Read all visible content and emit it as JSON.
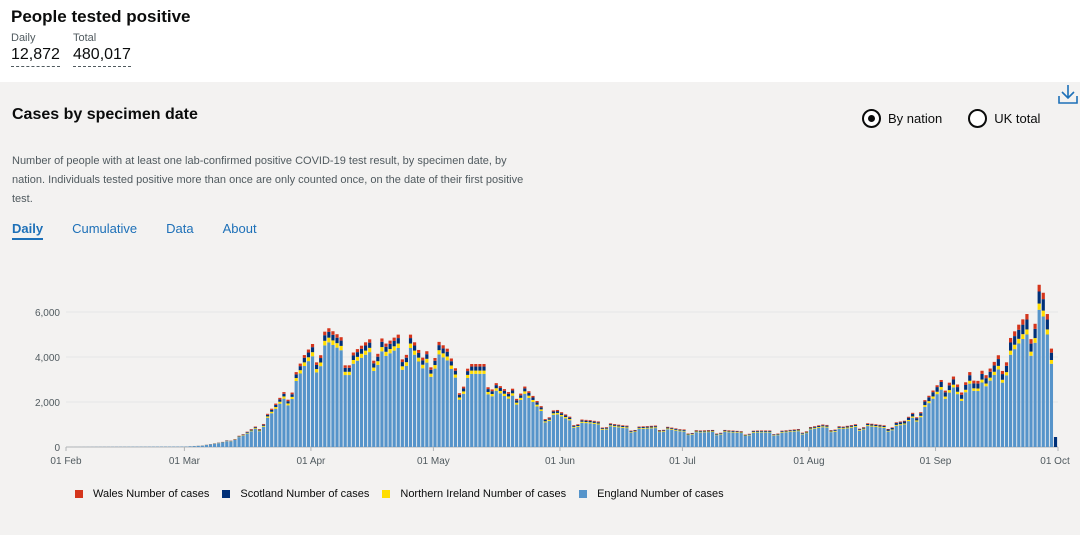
{
  "header": {
    "title": "People tested positive",
    "daily_label": "Daily",
    "daily_value": "12,872",
    "total_label": "Total",
    "total_value": "480,017"
  },
  "card": {
    "title": "Cases by specimen date",
    "radio_nation": "By nation",
    "radio_uk": "UK total",
    "selected": "By nation",
    "description": "Number of people with at least one lab-confirmed positive COVID-19 test result, by specimen date, by nation. Individuals tested positive more than once are only counted once, on the date of their first positive test.",
    "tabs": [
      "Daily",
      "Cumulative",
      "Data",
      "About"
    ],
    "active_tab": "Daily"
  },
  "chart_data": {
    "type": "bar",
    "stacked": true,
    "x_ticks": [
      "01 Feb",
      "01 Mar",
      "01 Apr",
      "01 May",
      "01 Jun",
      "01 Jul",
      "01 Aug",
      "01 Sep",
      "01 Oct"
    ],
    "y_ticks": [
      "0",
      "2,000",
      "4,000",
      "6,000"
    ],
    "ylim": [
      0,
      7500
    ],
    "grid": true,
    "legend_position": "bottom-left",
    "series_colors": {
      "England": "#5694ca",
      "Northern Ireland": "#ffdd00",
      "Scotland": "#003078",
      "Wales": "#d4351c"
    },
    "legend": [
      "Wales Number of cases",
      "Scotland Number of cases",
      "Northern Ireland Number of cases",
      "England Number of cases"
    ],
    "england_anchors": [
      [
        0,
        0
      ],
      [
        29,
        20
      ],
      [
        33,
        60
      ],
      [
        38,
        200
      ],
      [
        43,
        500
      ],
      [
        47,
        900
      ],
      [
        51,
        1700
      ],
      [
        55,
        2600
      ],
      [
        58,
        3600
      ],
      [
        61,
        4250
      ],
      [
        64,
        4650
      ],
      [
        67,
        4300
      ],
      [
        70,
        3700
      ],
      [
        73,
        4100
      ],
      [
        76,
        4450
      ],
      [
        78,
        4050
      ],
      [
        81,
        4400
      ],
      [
        84,
        4400
      ],
      [
        87,
        3500
      ],
      [
        90,
        4250
      ],
      [
        93,
        3850
      ],
      [
        96,
        2700
      ],
      [
        99,
        3250
      ],
      [
        102,
        3250
      ],
      [
        105,
        2500
      ],
      [
        108,
        2150
      ],
      [
        111,
        2550
      ],
      [
        114,
        2000
      ],
      [
        117,
        1400
      ],
      [
        120,
        1450
      ],
      [
        124,
        1100
      ],
      [
        128,
        1050
      ],
      [
        132,
        950
      ],
      [
        136,
        850
      ],
      [
        140,
        800
      ],
      [
        145,
        850
      ],
      [
        150,
        700
      ],
      [
        155,
        650
      ],
      [
        160,
        680
      ],
      [
        165,
        620
      ],
      [
        170,
        650
      ],
      [
        175,
        640
      ],
      [
        180,
        720
      ],
      [
        185,
        880
      ],
      [
        190,
        800
      ],
      [
        195,
        950
      ],
      [
        200,
        850
      ],
      [
        205,
        1000
      ],
      [
        208,
        1450
      ],
      [
        211,
        1950
      ],
      [
        214,
        2550
      ],
      [
        216,
        2950
      ],
      [
        219,
        2050
      ],
      [
        222,
        3200
      ],
      [
        225,
        2700
      ],
      [
        228,
        3450
      ],
      [
        231,
        4100
      ],
      [
        233,
        4600
      ],
      [
        236,
        5200
      ],
      [
        238,
        6100
      ],
      [
        239,
        5800
      ],
      [
        240,
        5000
      ],
      [
        241,
        3700
      ],
      [
        242,
        0
      ]
    ],
    "scale_ni": 0.045,
    "scale_sc": 0.055,
    "scale_wa": 0.035
  }
}
